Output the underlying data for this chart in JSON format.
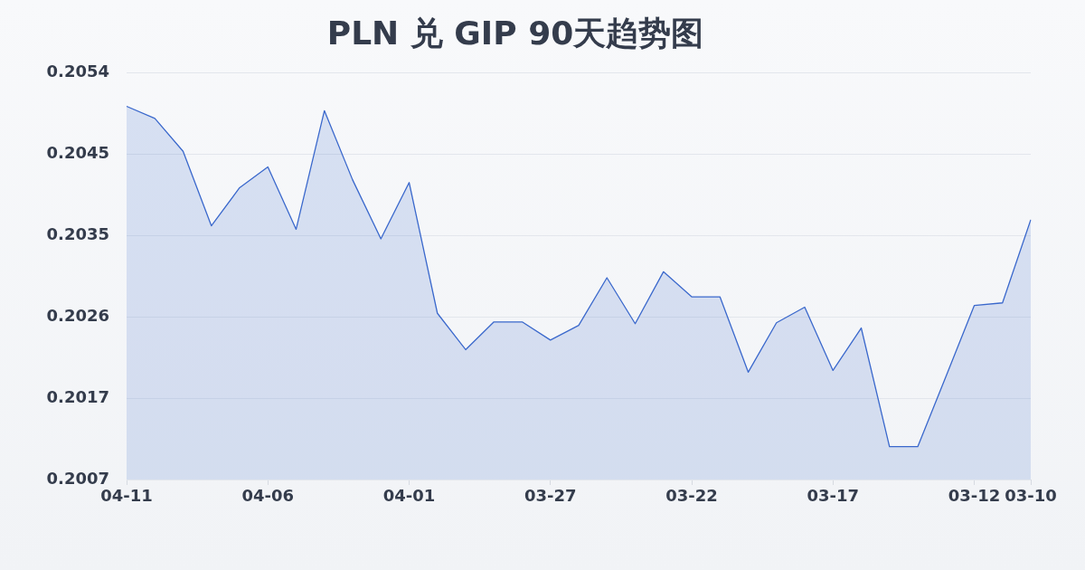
{
  "chart_data": {
    "type": "area",
    "title": "PLN 兑 GIP 90天趋势图",
    "categories": [
      "04-11",
      null,
      null,
      null,
      null,
      "04-06",
      null,
      null,
      null,
      null,
      "04-01",
      null,
      null,
      null,
      null,
      "03-27",
      null,
      null,
      null,
      null,
      "03-22",
      null,
      null,
      null,
      null,
      "03-17",
      null,
      null,
      null,
      null,
      "03-12",
      null,
      "03-10"
    ],
    "values": [
      0.20503,
      0.20489,
      0.20451,
      0.20365,
      0.20409,
      0.20433,
      0.20361,
      0.20498,
      0.20418,
      0.2035,
      0.20415,
      0.20264,
      0.20222,
      0.20254,
      0.20254,
      0.20233,
      0.2025,
      0.20305,
      0.20252,
      0.20312,
      0.20283,
      0.20283,
      0.20196,
      0.20253,
      0.20271,
      0.20198,
      0.20247,
      0.2011,
      0.2011,
      0.20191,
      0.20273,
      0.20276,
      0.20372
    ],
    "color": "#3a68cc",
    "ylim": [
      0.20072,
      0.20542
    ],
    "yticks": [
      {
        "value": 0.20072,
        "label": "0.2007"
      },
      {
        "value": 0.20166,
        "label": "0.2017"
      },
      {
        "value": 0.2026,
        "label": "0.2026"
      },
      {
        "value": 0.20354,
        "label": "0.2035"
      },
      {
        "value": 0.20448,
        "label": "0.2045"
      },
      {
        "value": 0.20542,
        "label": "0.2054"
      }
    ],
    "grid": "y",
    "marker": "none"
  }
}
